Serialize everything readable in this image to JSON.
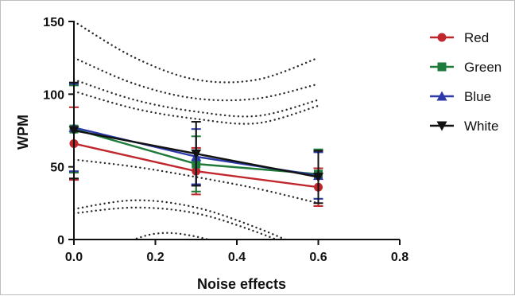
{
  "chart_data": {
    "type": "line",
    "xlabel": "Noise effects",
    "ylabel": "WPM",
    "xlim": [
      0,
      0.8
    ],
    "ylim": [
      0,
      150
    ],
    "x_ticks": [
      0,
      0.2,
      0.4,
      0.6,
      0.8
    ],
    "y_ticks": [
      0,
      50,
      100,
      150
    ],
    "x_tick_labels": [
      "0.0",
      "0.2",
      "0.4",
      "0.6",
      "0.8"
    ],
    "y_tick_labels": [
      "0",
      "50",
      "100",
      "150"
    ],
    "x": [
      0,
      0.3,
      0.6
    ],
    "series": [
      {
        "name": "Red",
        "color": "#c0272d",
        "marker": "circle",
        "values": [
          66,
          47,
          36
        ],
        "errors": [
          25,
          16,
          13
        ]
      },
      {
        "name": "Green",
        "color": "#1e7b3a",
        "marker": "square",
        "values": [
          76,
          52,
          45
        ],
        "errors": [
          30,
          19,
          17
        ]
      },
      {
        "name": "Blue",
        "color": "#2b3aa8",
        "marker": "triangle-up",
        "values": [
          77,
          57,
          44
        ],
        "errors": [
          30,
          19,
          16
        ]
      },
      {
        "name": "White",
        "color": "#111111",
        "marker": "triangle-down",
        "values": [
          75,
          59,
          43
        ],
        "errors": [
          33,
          22,
          18
        ]
      }
    ],
    "confidence_bands": [
      {
        "x": [
          0.0,
          0.15,
          0.3,
          0.45,
          0.6
        ],
        "values": [
          150,
          125,
          110,
          110,
          125
        ]
      },
      {
        "x": [
          0.0,
          0.15,
          0.3,
          0.45,
          0.6
        ],
        "values": [
          125,
          107,
          97,
          97,
          107
        ]
      },
      {
        "x": [
          0.0,
          0.15,
          0.3,
          0.45,
          0.6
        ],
        "values": [
          110,
          96,
          88,
          85,
          96
        ]
      },
      {
        "x": [
          0.0,
          0.15,
          0.3,
          0.45,
          0.6
        ],
        "values": [
          102,
          90,
          83,
          80,
          92
        ]
      },
      {
        "x": [
          0.0,
          0.15,
          0.3,
          0.45,
          0.6
        ],
        "values": [
          55,
          50,
          43,
          35,
          25
        ]
      },
      {
        "x": [
          0.0,
          0.15,
          0.3,
          0.45,
          0.6
        ],
        "values": [
          21,
          27,
          22,
          8,
          -10
        ]
      },
      {
        "x": [
          0.0,
          0.15,
          0.3,
          0.45,
          0.6
        ],
        "values": [
          18,
          22,
          18,
          5,
          -12
        ]
      },
      {
        "x": [
          0.0,
          0.1,
          0.2,
          0.3,
          0.45,
          0.6
        ],
        "values": [
          -15,
          -5,
          4,
          2,
          -10,
          -20
        ]
      }
    ],
    "legend_position": "right",
    "grid": false
  }
}
